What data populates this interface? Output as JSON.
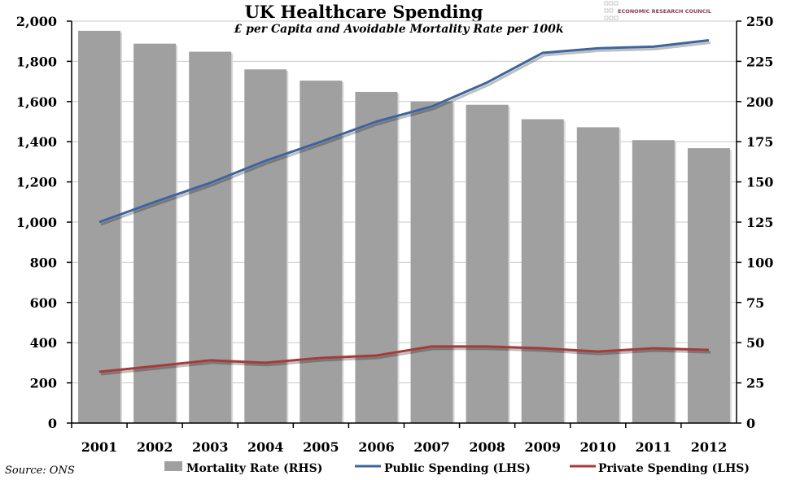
{
  "chart_data": {
    "type": "bar+line",
    "title": "UK Healthcare Spending",
    "subtitle": "£ per Capita and Avoidable Mortality Rate per 100k",
    "categories": [
      "2001",
      "2002",
      "2003",
      "2004",
      "2005",
      "2006",
      "2007",
      "2008",
      "2009",
      "2010",
      "2011",
      "2012"
    ],
    "left_axis": {
      "range": [
        0,
        2000
      ],
      "ticks": [
        "0",
        "200",
        "400",
        "600",
        "800",
        "1,000",
        "1,200",
        "1,400",
        "1,600",
        "1,800",
        "2,000"
      ]
    },
    "right_axis": {
      "range": [
        0,
        250
      ],
      "ticks": [
        "0",
        "25",
        "50",
        "75",
        "100",
        "125",
        "150",
        "175",
        "200",
        "225",
        "250"
      ]
    },
    "series": [
      {
        "name": "Mortality Rate (RHS)",
        "type": "bar",
        "axis": "right",
        "color": "#a0a0a0",
        "values": [
          244,
          236,
          231,
          220,
          213,
          206,
          200,
          198,
          189,
          184,
          176,
          171
        ]
      },
      {
        "name": "Public Spending (LHS)",
        "type": "line",
        "axis": "left",
        "color": "#3b64a0",
        "values": [
          1000,
          1100,
          1195,
          1305,
          1400,
          1500,
          1575,
          1695,
          1842,
          1865,
          1873,
          1905
        ]
      },
      {
        "name": "Private Spending (LHS)",
        "type": "line",
        "axis": "left",
        "color": "#a63a3a",
        "values": [
          255,
          283,
          312,
          300,
          324,
          336,
          381,
          381,
          372,
          356,
          372,
          364
        ]
      }
    ],
    "legend_position": "bottom",
    "grid": true,
    "source": "Source: ONS",
    "logo": "ECONOMIC RESEARCH COUNCIL"
  }
}
